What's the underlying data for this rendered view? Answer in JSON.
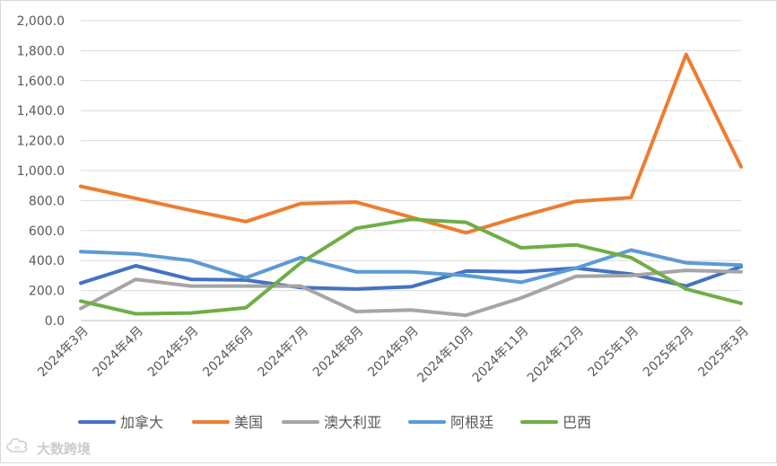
{
  "chart_data": {
    "type": "line",
    "title": "",
    "xlabel": "",
    "ylabel": "",
    "ylim": [
      0,
      2000
    ],
    "y_ticks": [
      0,
      200,
      400,
      600,
      800,
      1000,
      1200,
      1400,
      1600,
      1800,
      2000
    ],
    "y_tick_labels": [
      "0.0",
      "200.0",
      "400.0",
      "600.0",
      "800.0",
      "1,000.0",
      "1,200.0",
      "1,400.0",
      "1,600.0",
      "1,800.0",
      "2,000.0"
    ],
    "grid": "horizontal",
    "legend_position": "bottom",
    "categories": [
      "2024年3月",
      "2024年4月",
      "2024年5月",
      "2024年6月",
      "2024年7月",
      "2024年8月",
      "2024年9月",
      "2024年10月",
      "2024年11月",
      "2024年12月",
      "2025年1月",
      "2025年2月",
      "2025年3月"
    ],
    "series": [
      {
        "name": "加拿大",
        "color": "#4472c4",
        "values": [
          250,
          365,
          275,
          270,
          220,
          210,
          225,
          330,
          325,
          350,
          310,
          230,
          360
        ]
      },
      {
        "name": "美国",
        "color": "#ed7d31",
        "values": [
          895,
          815,
          735,
          660,
          780,
          790,
          690,
          585,
          695,
          795,
          820,
          1775,
          1025
        ]
      },
      {
        "name": "澳大利亚",
        "color": "#a5a5a5",
        "values": [
          80,
          275,
          230,
          230,
          230,
          60,
          70,
          35,
          150,
          295,
          300,
          335,
          325
        ]
      },
      {
        "name": "阿根廷",
        "color": "#5b9bd5",
        "values": [
          460,
          445,
          400,
          285,
          420,
          325,
          325,
          300,
          255,
          350,
          470,
          385,
          370
        ]
      },
      {
        "name": "巴西",
        "color": "#70ad47",
        "values": [
          130,
          45,
          50,
          85,
          385,
          615,
          675,
          655,
          485,
          505,
          420,
          210,
          115
        ]
      }
    ]
  },
  "watermark": {
    "text": "大数跨境",
    "icon": "cloud-logo-icon"
  }
}
